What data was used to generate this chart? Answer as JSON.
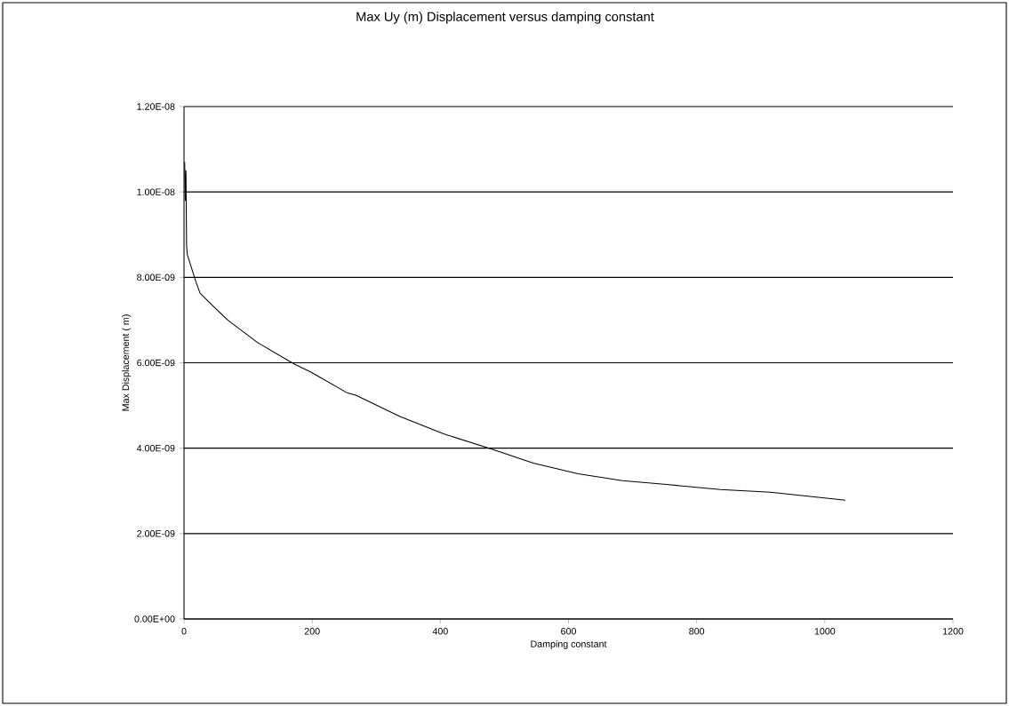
{
  "chart_data": {
    "type": "line",
    "title": "Max Uy (m) Displacement versus damping constant",
    "xlabel": "Damping constant",
    "ylabel": "Max Displacement ( m)",
    "x": [
      1,
      2,
      3,
      4,
      5,
      18,
      25,
      46,
      69,
      115,
      171,
      198,
      254,
      268,
      337,
      406,
      476,
      545,
      615,
      684,
      753,
      837,
      915,
      1032
    ],
    "values": [
      1.07e-08,
      9.8e-09,
      1.05e-08,
      8.74e-09,
      8.54e-09,
      7.92e-09,
      7.63e-09,
      7.32e-09,
      6.99e-09,
      6.47e-09,
      5.98e-09,
      5.78e-09,
      5.3e-09,
      5.24e-09,
      4.74e-09,
      4.33e-09,
      4e-09,
      3.65e-09,
      3.4e-09,
      3.24e-09,
      3.15e-09,
      3.03e-09,
      2.97e-09,
      2.78e-09
    ],
    "color": "#000000",
    "xlim": [
      0,
      1200
    ],
    "ylim": [
      0,
      1.2e-08
    ],
    "xticks": [
      0,
      200,
      400,
      600,
      800,
      1000,
      1200
    ],
    "yticks": [
      {
        "value": 0,
        "label": "0.00E+00"
      },
      {
        "value": 2e-09,
        "label": "2.00E-09"
      },
      {
        "value": 4e-09,
        "label": "4.00E-09"
      },
      {
        "value": 6e-09,
        "label": "6.00E-09"
      },
      {
        "value": 8e-09,
        "label": "8.00E-09"
      },
      {
        "value": 1e-08,
        "label": "1.00E-08"
      },
      {
        "value": 1.2e-08,
        "label": "1.20E-08"
      }
    ],
    "grid": "y"
  }
}
